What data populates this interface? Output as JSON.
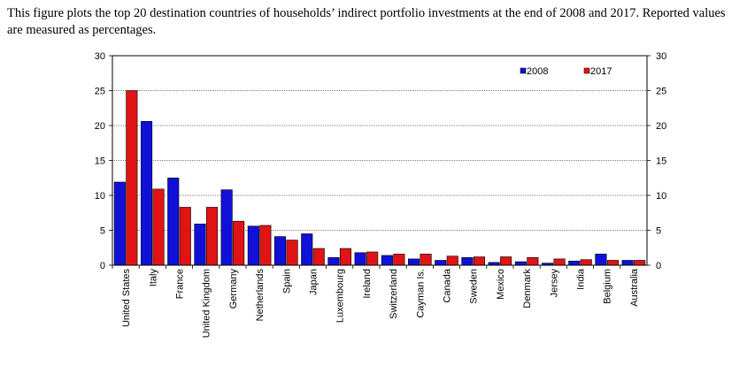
{
  "caption": "This figure plots the top 20 destination countries of households’ indirect portfolio investments at the end of 2008 and 2017. Reported values are measured as percentages.",
  "chart_data": {
    "type": "bar",
    "categories": [
      "United States",
      "Italy",
      "France",
      "United Kingdom",
      "Germany",
      "Netherlands",
      "Spain",
      "Japan",
      "Luxembourg",
      "Ireland",
      "Switzerland",
      "Cayman Is.",
      "Canada",
      "Sweden",
      "Mexico",
      "Denmark",
      "Jersey",
      "India",
      "Belgium",
      "Australia"
    ],
    "series": [
      {
        "name": "2008",
        "color": "#1010d8",
        "values": [
          11.9,
          20.6,
          12.5,
          5.9,
          10.8,
          5.6,
          4.1,
          4.5,
          1.1,
          1.8,
          1.4,
          0.9,
          0.7,
          1.1,
          0.4,
          0.5,
          0.3,
          0.6,
          1.6,
          0.7
        ]
      },
      {
        "name": "2017",
        "color": "#e01414",
        "values": [
          25.0,
          10.9,
          8.3,
          8.3,
          6.3,
          5.7,
          3.6,
          2.4,
          2.4,
          1.9,
          1.6,
          1.6,
          1.3,
          1.2,
          1.2,
          1.1,
          0.9,
          0.8,
          0.7,
          0.7
        ]
      }
    ],
    "ylim": [
      0,
      30
    ],
    "yticks": [
      0,
      5,
      10,
      15,
      20,
      25,
      30
    ],
    "grid": true,
    "legend": "top-right",
    "secondary_axis": true
  }
}
